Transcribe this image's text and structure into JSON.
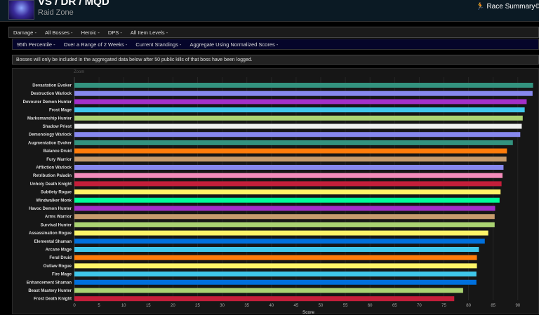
{
  "header": {
    "title": "VS / DR / MQD",
    "subtitle": "Raid Zone",
    "race_summary": "Race Summary",
    "race_icon": "running-person-icon"
  },
  "filters_row1": [
    "Damage",
    "All Bosses",
    "Heroic",
    "DPS",
    "All Item Levels"
  ],
  "filters_row2": [
    "95th Percentile",
    "Over a Range of 2 Weeks",
    "Current Standings",
    "Aggregate Using Normalized Scores"
  ],
  "notice": "Bosses will only be included in the aggregated data below after 50 public kills of that boss have been logged.",
  "chart_data": {
    "type": "bar",
    "orientation": "horizontal",
    "zoom_label": "Zoom",
    "xlabel": "Score",
    "xlim": [
      0,
      95
    ],
    "xticks": [
      0,
      5,
      10,
      15,
      20,
      25,
      30,
      35,
      40,
      45,
      50,
      55,
      60,
      65,
      70,
      75,
      80,
      85,
      90,
      95
    ],
    "grid": true,
    "categories": [
      "Devastation Evoker",
      "Destruction Warlock",
      "Devourer Demon Hunter",
      "Frost Mage",
      "Marksmanship Hunter",
      "Shadow Priest",
      "Demonology Warlock",
      "Augmentation Evoker",
      "Balance Druid",
      "Fury Warrior",
      "Affliction Warlock",
      "Retribution Paladin",
      "Unholy Death Knight",
      "Subtlety Rogue",
      "Windwalker Monk",
      "Havoc Demon Hunter",
      "Arms Warrior",
      "Survival Hunter",
      "Assassination Rogue",
      "Elemental Shaman",
      "Arcane Mage",
      "Feral Druid",
      "Outlaw Rogue",
      "Fire Mage",
      "Enhancement Shaman",
      "Beast Mastery Hunter",
      "Frost Death Knight"
    ],
    "values": [
      93.1,
      93.0,
      91.8,
      91.4,
      91.0,
      90.8,
      90.5,
      89.0,
      87.8,
      87.7,
      87.1,
      86.9,
      86.7,
      86.5,
      86.3,
      85.4,
      85.3,
      85.3,
      84.0,
      83.3,
      82.1,
      81.7,
      81.7,
      81.6,
      81.6,
      78.9,
      77.1
    ],
    "colors": [
      "#33937f",
      "#8788ee",
      "#a330c9",
      "#3fc7eb",
      "#aad372",
      "#f0f0f0",
      "#8788ee",
      "#33937f",
      "#ff7c0a",
      "#c69b6d",
      "#8788ee",
      "#f48cba",
      "#c41e3a",
      "#fff468",
      "#00ff98",
      "#a330c9",
      "#c69b6d",
      "#aad372",
      "#fff468",
      "#0070dd",
      "#3fc7eb",
      "#ff7c0a",
      "#fff468",
      "#3fc7eb",
      "#0070dd",
      "#aad372",
      "#c41e3a"
    ]
  }
}
